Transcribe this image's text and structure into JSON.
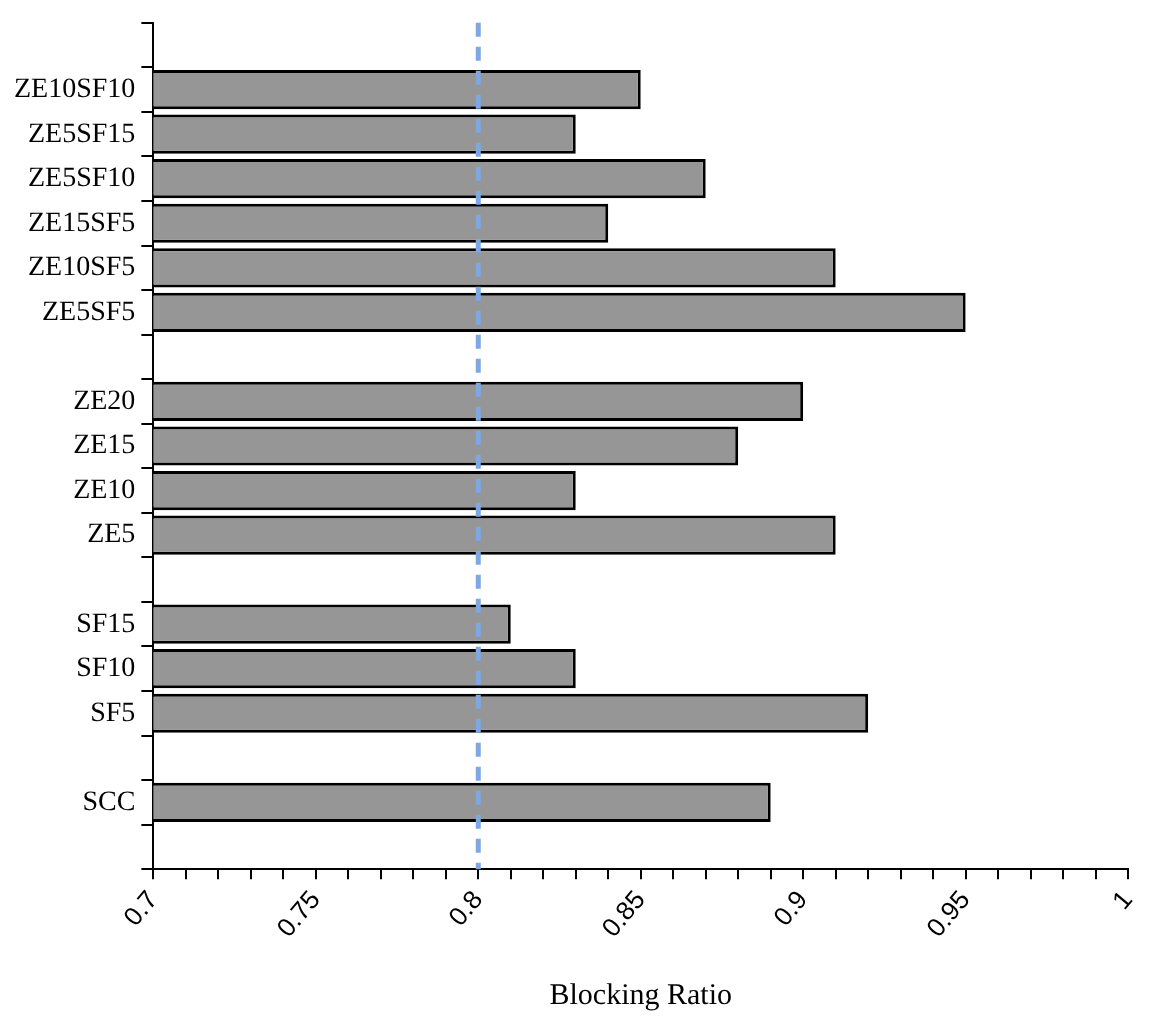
{
  "chart_data": {
    "type": "bar",
    "orientation": "horizontal",
    "xlabel": "Blocking Ratio",
    "categories": [
      null,
      "ZE10SF10",
      "ZE5SF15",
      "ZE5SF10",
      "ZE15SF5",
      "ZE10SF5",
      "ZE5SF5",
      null,
      "ZE20",
      "ZE15",
      "ZE10",
      "ZE5",
      null,
      "SF15",
      "SF10",
      "SF5",
      null,
      "SCC",
      null
    ],
    "values": [
      null,
      0.85,
      0.83,
      0.87,
      0.84,
      0.91,
      0.95,
      null,
      0.9,
      0.88,
      0.83,
      0.91,
      null,
      0.81,
      0.83,
      0.92,
      null,
      0.89,
      null
    ],
    "color": "#969696",
    "xlim": [
      0.7,
      1
    ],
    "xticks": [
      0.7,
      {
        "value": 0.71,
        "label": null
      },
      {
        "value": 0.72,
        "label": null
      },
      {
        "value": 0.73,
        "label": null
      },
      {
        "value": 0.74,
        "label": null
      },
      0.75,
      {
        "value": 0.76,
        "label": null
      },
      {
        "value": 0.77,
        "label": null
      },
      {
        "value": 0.78,
        "label": null
      },
      {
        "value": 0.79,
        "label": null
      },
      0.8,
      {
        "value": 0.81,
        "label": null
      },
      {
        "value": 0.82,
        "label": null
      },
      {
        "value": 0.83,
        "label": null
      },
      {
        "value": 0.84,
        "label": null
      },
      0.85,
      {
        "value": 0.86,
        "label": null
      },
      {
        "value": 0.87,
        "label": null
      },
      {
        "value": 0.88,
        "label": null
      },
      {
        "value": 0.89,
        "label": null
      },
      0.9,
      {
        "value": 0.91,
        "label": null
      },
      {
        "value": 0.92,
        "label": null
      },
      {
        "value": 0.93,
        "label": null
      },
      {
        "value": 0.94,
        "label": null
      },
      0.95,
      {
        "value": 0.96,
        "label": null
      },
      {
        "value": 0.97,
        "label": null
      },
      {
        "value": 0.98,
        "label": null
      },
      {
        "value": 0.99,
        "label": null
      },
      1
    ],
    "ref_lines": [
      {
        "axis": "x",
        "value": 0.8,
        "color": "#7fa7e0",
        "line_style": "dashed"
      }
    ],
    "grid": false,
    "legend": false
  }
}
